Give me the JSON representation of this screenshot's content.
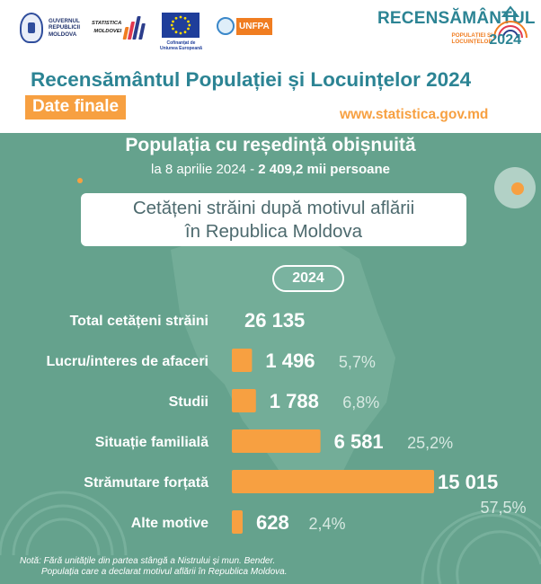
{
  "header": {
    "gov_logo_text": "GUVERNUL\nREPUBLICII\nMOLDOVA",
    "stat_logo_text": "STATISTICA\nMOLDOVEI",
    "eu_caption": "Cofinanțat de\nUniunea Europeană",
    "unfpa_label": "UNFPA",
    "brand_title": "RECENSĂMÂNTUL",
    "brand_sub": "POPULAȚIEI ȘI\nLOCUINȚELOR",
    "brand_year": "2024",
    "main_title": "Recensământul Populației și Locuințelor 2024",
    "badge": "Date finale",
    "website": "www.statistica.gov.md"
  },
  "panel": {
    "pop_title": "Populația cu reședință obișnuită",
    "pop_sub_prefix": "la 8 aprilie 2024 - ",
    "pop_sub_value": "2 409,2 mii persoane",
    "subtitle": "Cetățeni străini după motivul aflării\nîn Republica Moldova",
    "year_pill": "2024"
  },
  "chart_data": {
    "type": "bar",
    "orientation": "horizontal",
    "title": "Cetățeni străini după motivul aflării în Republica Moldova",
    "total": {
      "label": "Total cetățeni străini",
      "value": "26 135"
    },
    "categories": [
      "Lucru/interes de afaceri",
      "Studii",
      "Situație familială",
      "Strămutare forțată",
      "Alte motive"
    ],
    "values": [
      1496,
      1788,
      6581,
      15015,
      628
    ],
    "value_labels": [
      "1 496",
      "1 788",
      "6 581",
      "15 015",
      "628"
    ],
    "percent_labels": [
      "5,7%",
      "6,8%",
      "25,2%",
      "57,5%",
      "2,4%"
    ],
    "bar_color": "#f7a041"
  },
  "notes": {
    "line1": "Notă: Fără unitățile din partea stângă a Nistrului și mun. Bender.",
    "line2": "Populația care a declarat motivul aflării în Republica Moldova."
  },
  "colors": {
    "teal": "#2c8494",
    "orange": "#f7a041",
    "panel_green": "#65a28d"
  }
}
